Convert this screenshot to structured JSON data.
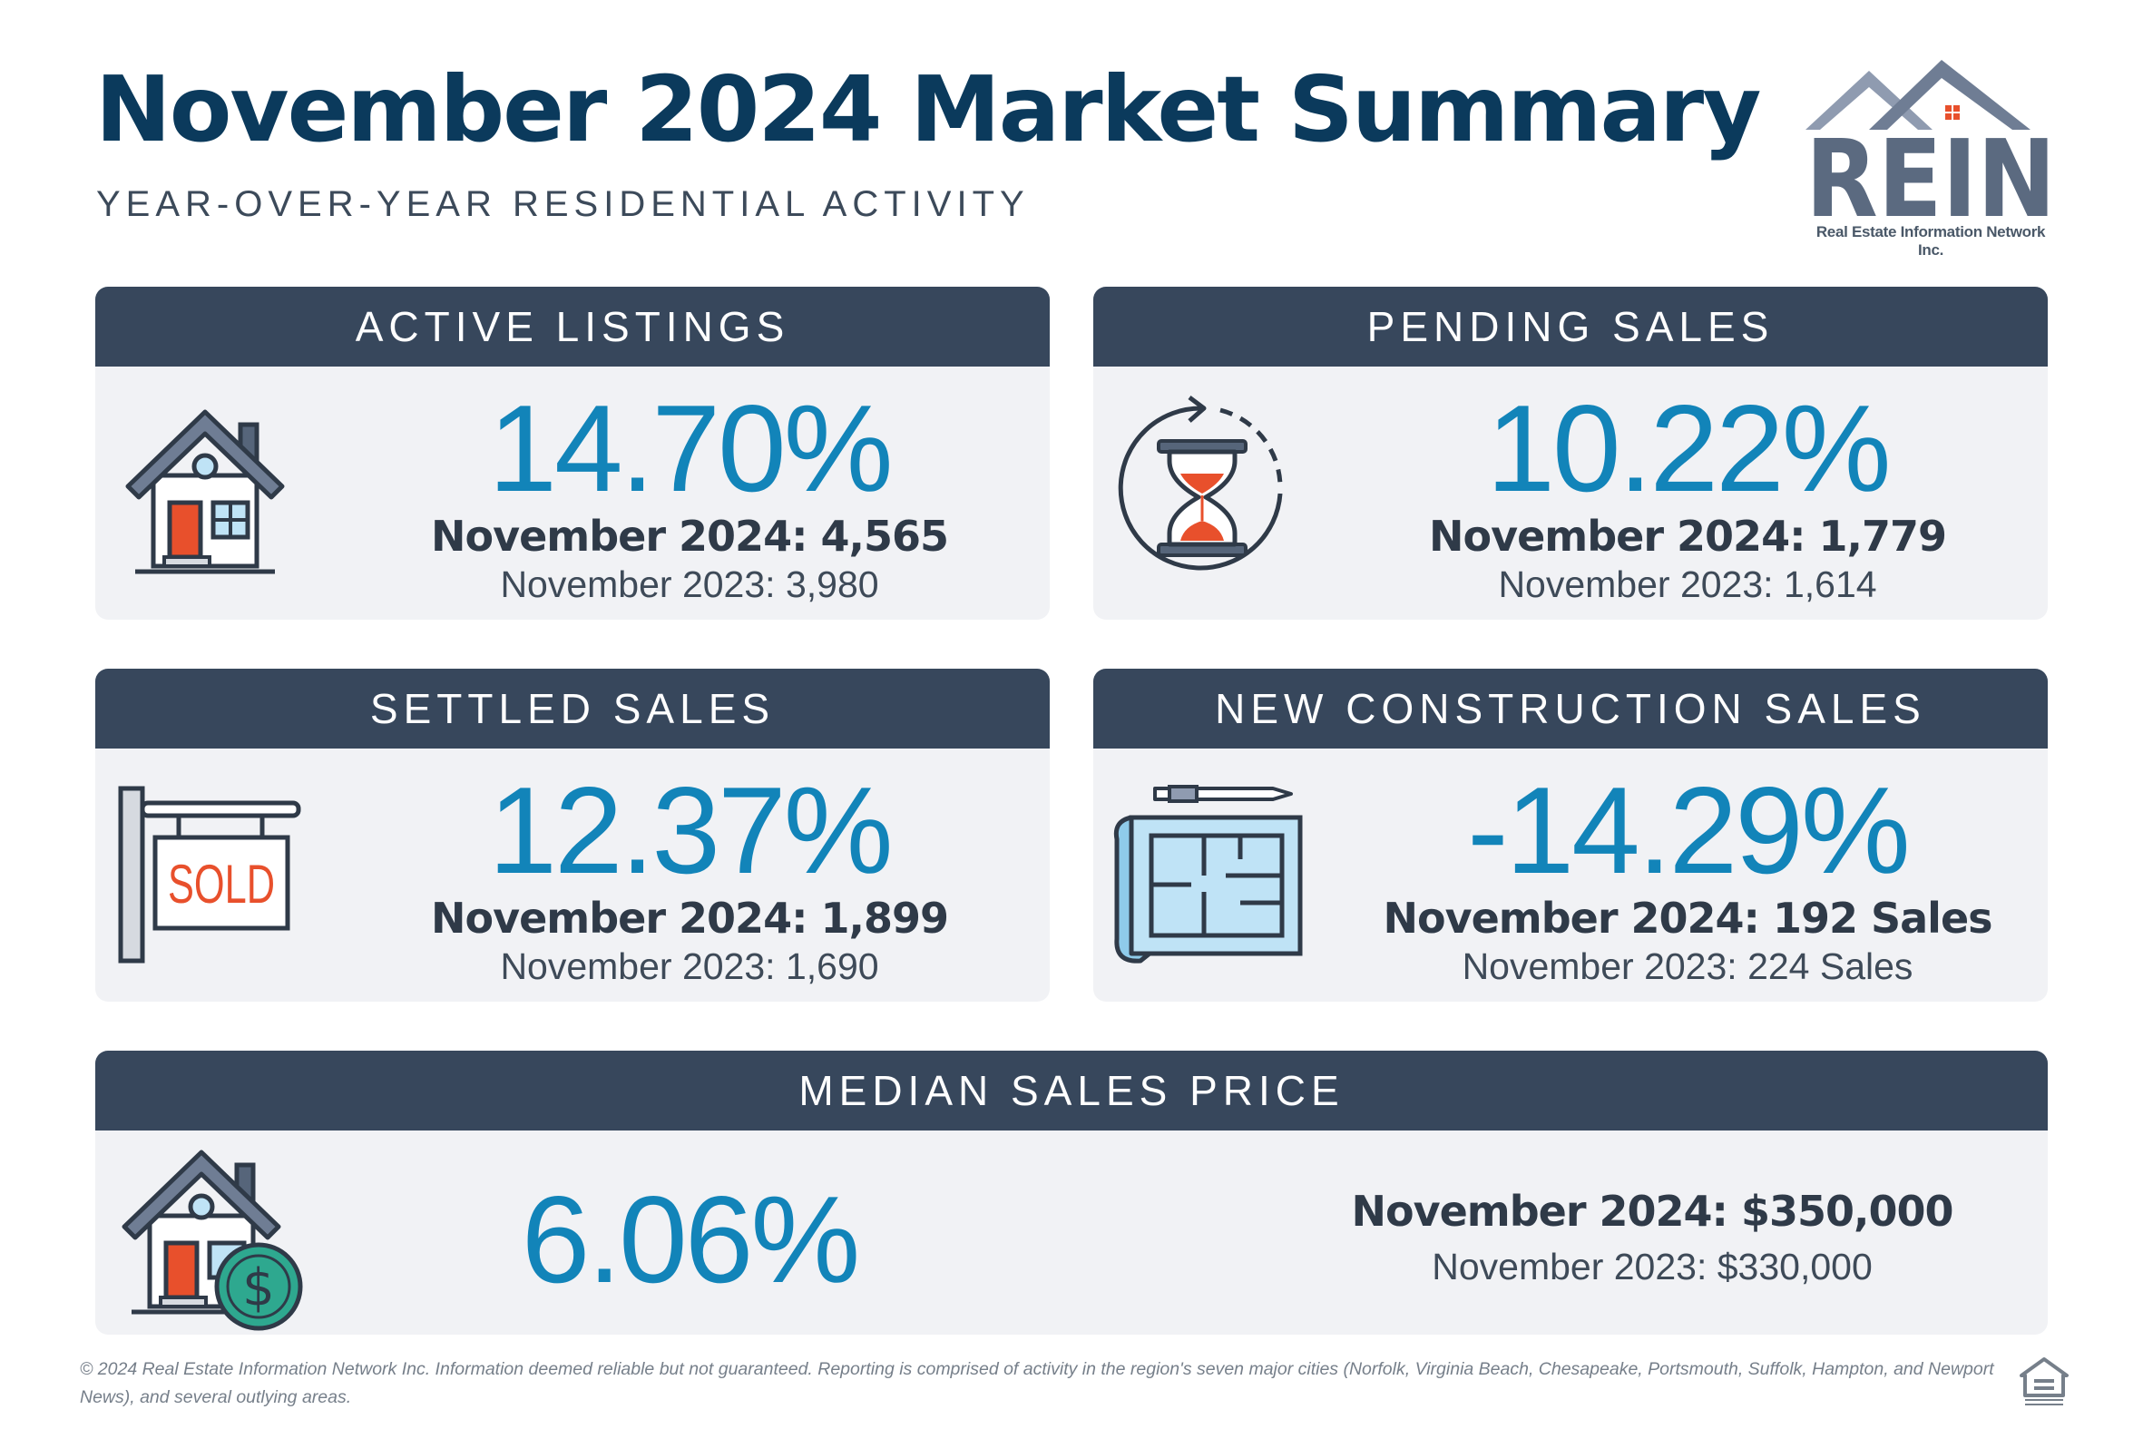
{
  "header": {
    "title": "November 2024 Market Summary",
    "subtitle": "YEAR-OVER-YEAR RESIDENTIAL ACTIVITY"
  },
  "logo": {
    "text": "REIN",
    "tagline": "Real Estate Information Network Inc."
  },
  "cards": {
    "active": {
      "title": "ACTIVE LISTINGS",
      "pct": "14.70%",
      "current": "November 2024: 4,565",
      "previous": "November 2023: 3,980",
      "icon": "house-icon"
    },
    "pending": {
      "title": "PENDING SALES",
      "pct": "10.22%",
      "current": "November 2024: 1,779",
      "previous": "November 2023: 1,614",
      "icon": "hourglass-icon"
    },
    "settled": {
      "title": "SETTLED SALES",
      "pct": "12.37%",
      "current": "November 2024: 1,899",
      "previous": "November 2023: 1,690",
      "icon": "sold-sign-icon",
      "sign_text": "SOLD"
    },
    "construction": {
      "title": "NEW CONSTRUCTION SALES",
      "pct": "-14.29%",
      "current": "November 2024: 192 Sales",
      "previous": "November 2023: 224 Sales",
      "icon": "blueprint-icon"
    },
    "median": {
      "title": "MEDIAN SALES PRICE",
      "pct": "6.06%",
      "current": "November 2024: $350,000",
      "previous": "November 2023: $330,000",
      "icon": "house-dollar-icon"
    }
  },
  "colors": {
    "navy": "#0b3a5c",
    "header_bar": "#37475c",
    "accent_blue": "#1284b9",
    "card_bg": "#f1f2f5",
    "door_orange": "#e8502c"
  },
  "footer": {
    "text": "© 2024 Real Estate Information Network Inc. Information deemed reliable but not guaranteed. Reporting is comprised of activity in the region's seven major cities (Norfolk, Virginia Beach, Chesapeake, Portsmouth, Suffolk, Hampton, and Newport News), and several outlying areas.",
    "eho_icon": "equal-housing-icon"
  }
}
